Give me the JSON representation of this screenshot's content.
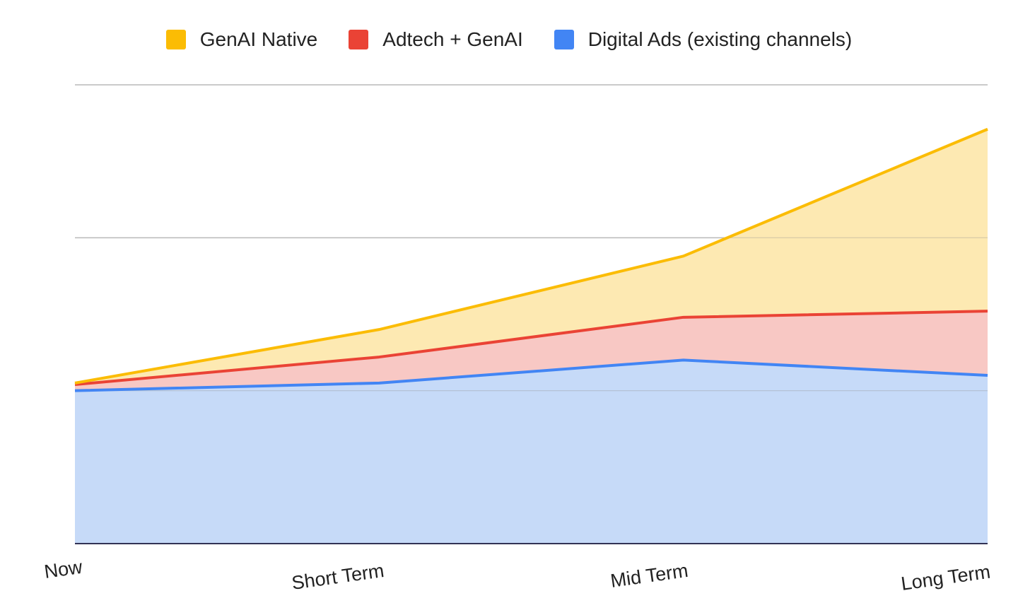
{
  "chart_data": {
    "type": "area",
    "stacked": true,
    "categories": [
      "Now",
      "Short Term",
      "Mid Term",
      "Long Term"
    ],
    "series": [
      {
        "name": "Digital Ads (existing channels)",
        "values": [
          1.0,
          1.05,
          1.2,
          1.1
        ],
        "line_color": "#4285F4",
        "fill_color": "#C6DAF8"
      },
      {
        "name": "Adtech + GenAI",
        "values": [
          0.04,
          0.17,
          0.28,
          0.42
        ],
        "line_color": "#EA4335",
        "fill_color": "#F8C8C4"
      },
      {
        "name": "GenAI Native",
        "values": [
          0.01,
          0.18,
          0.4,
          1.19
        ],
        "line_color": "#FBBC04",
        "fill_color": "#FDE9B2"
      }
    ],
    "ylim": [
      0,
      3
    ],
    "gridlines": [
      1,
      2,
      3
    ],
    "grid": true,
    "y_tick_labels_shown": false,
    "legend_position": "top-center",
    "title": "",
    "xlabel": "",
    "ylabel": ""
  }
}
